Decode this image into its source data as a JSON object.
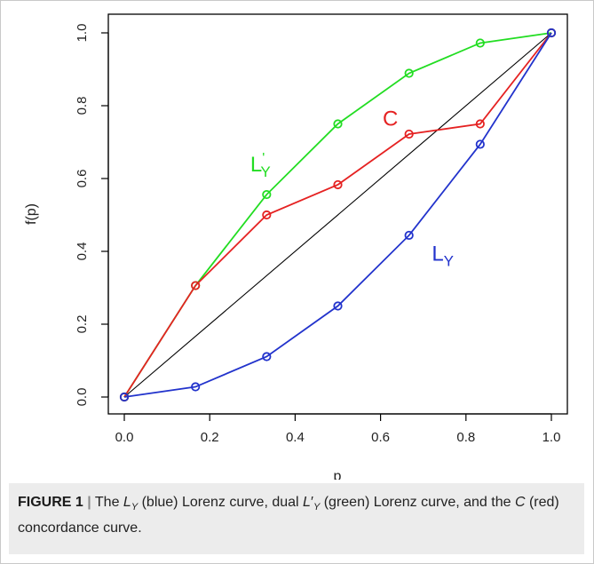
{
  "chart_data": {
    "type": "line",
    "xlabel": "p",
    "ylabel": "f(p)",
    "xlim": [
      0,
      1
    ],
    "ylim": [
      0,
      1
    ],
    "xticks": [
      "0.0",
      "0.2",
      "0.4",
      "0.6",
      "0.8",
      "1.0"
    ],
    "yticks": [
      "0.0",
      "0.2",
      "0.4",
      "0.6",
      "0.8",
      "1.0"
    ],
    "grid": false,
    "series": [
      {
        "name": "L'Y",
        "label_main": "L",
        "label_prime": "'",
        "label_sub": "Y",
        "color": "#22dd22",
        "x": [
          0.0,
          0.1667,
          0.3333,
          0.5,
          0.6667,
          0.8333,
          1.0
        ],
        "y": [
          0.0,
          0.306,
          0.556,
          0.75,
          0.889,
          0.972,
          1.0
        ]
      },
      {
        "name": "C",
        "label_main": "C",
        "label_prime": "",
        "label_sub": "",
        "color": "#e52222",
        "x": [
          0.0,
          0.1667,
          0.3333,
          0.5,
          0.6667,
          0.8333,
          1.0
        ],
        "y": [
          0.0,
          0.306,
          0.5,
          0.583,
          0.722,
          0.75,
          1.0
        ]
      },
      {
        "name": "LY",
        "label_main": "L",
        "label_prime": "",
        "label_sub": "Y",
        "color": "#2233cc",
        "x": [
          0.0,
          0.1667,
          0.3333,
          0.5,
          0.6667,
          0.8333,
          1.0
        ],
        "y": [
          0.0,
          0.028,
          0.111,
          0.25,
          0.444,
          0.694,
          1.0
        ]
      }
    ],
    "diagonal": {
      "x": [
        0,
        1
      ],
      "y": [
        0,
        1
      ],
      "color": "#000000"
    }
  },
  "caption": {
    "figure_number": "FIGURE 1",
    "separator": "|",
    "text_1": " The ",
    "ly_main": "L",
    "ly_sub": "Y",
    "text_2": " (blue) Lorenz curve, dual ",
    "dual_main": "L",
    "dual_prime": "′",
    "dual_sub": "Y",
    "text_3": " (green) Lorenz curve, and the ",
    "c_label": "C",
    "text_4": " (red) concordance curve."
  }
}
